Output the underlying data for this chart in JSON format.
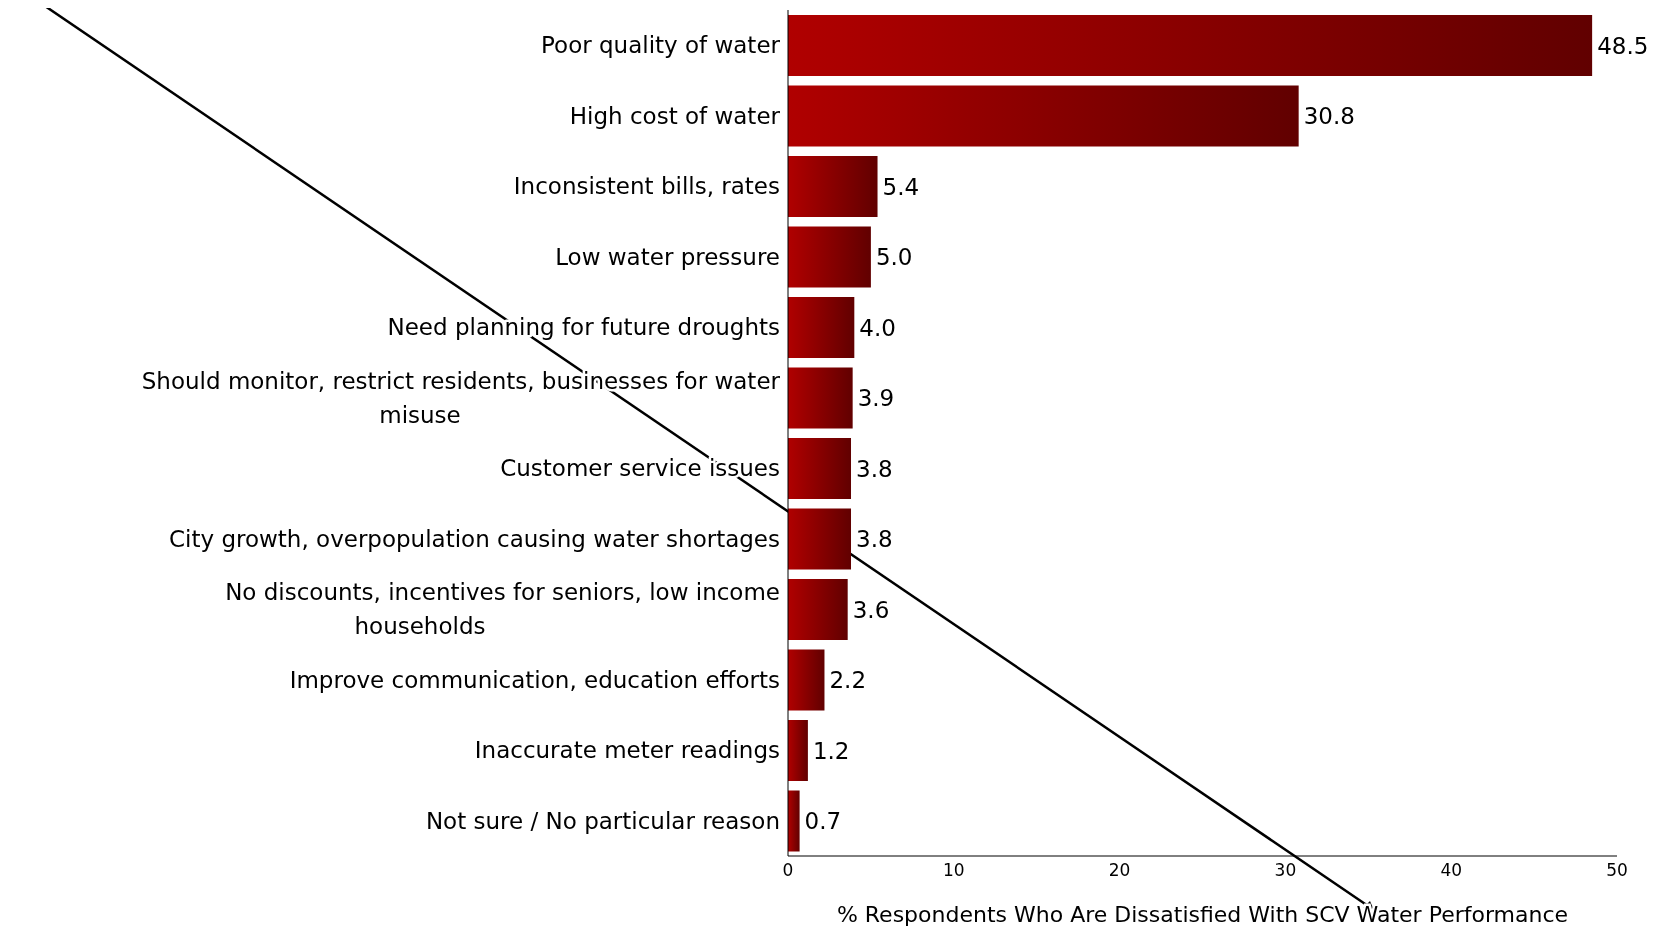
{
  "chart_data": {
    "type": "bar",
    "orientation": "horizontal",
    "xlabel": "% Respondents Who Are Dissatisfied With SCV Water Performance",
    "categories": [
      "Poor quality of water",
      "High cost of water",
      "Inconsistent bills, rates",
      "Low water pressure",
      "Need planning for future droughts",
      "Should monitor, restrict residents, businesses for water misuse",
      "Customer service issues",
      "City growth, overpopulation causing water shortages",
      "No discounts, incentives for seniors, low income households",
      "Improve communication, education efforts",
      "Inaccurate meter readings",
      "Not sure / No particular  reason"
    ],
    "values": [
      48.5,
      30.8,
      5.4,
      5.0,
      4.0,
      3.9,
      3.8,
      3.8,
      3.6,
      2.2,
      1.2,
      0.7
    ],
    "value_labels": [
      "48.5",
      "30.8",
      "5.4",
      "5.0",
      "4.0",
      "3.9",
      "3.8",
      "3.8",
      "3.6",
      "2.2",
      "1.2",
      "0.7"
    ],
    "color": "#b00000",
    "xlim": [
      0,
      50
    ],
    "xticks": [
      0,
      10,
      20,
      30,
      40,
      50
    ],
    "grid": false,
    "legend": false
  }
}
